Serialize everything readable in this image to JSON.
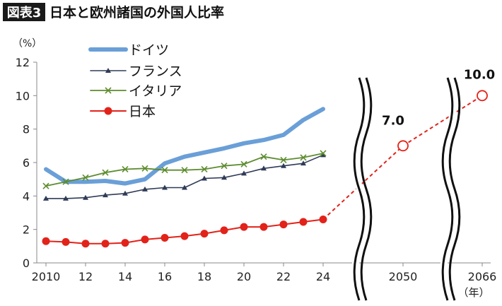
{
  "header": {
    "badge": "図表3",
    "title": "日本と欧州諸国の外国人比率"
  },
  "chart_data": {
    "type": "line",
    "unit_label": "（%）",
    "xlabel": "",
    "ylabel": "",
    "ylim": [
      0,
      12
    ],
    "yticks": [
      "0",
      "2",
      "4",
      "6",
      "8",
      "10",
      "12"
    ],
    "x": [
      2010,
      2011,
      2012,
      2013,
      2014,
      2015,
      2016,
      2017,
      2018,
      2019,
      2020,
      2021,
      2022,
      2023,
      2024
    ],
    "xticks": [
      {
        "year": 2010,
        "label": "2010"
      },
      {
        "year": 2012,
        "label": "12"
      },
      {
        "year": 2014,
        "label": "14"
      },
      {
        "year": 2016,
        "label": "16"
      },
      {
        "year": 2018,
        "label": "18"
      },
      {
        "year": 2020,
        "label": "20"
      },
      {
        "year": 2022,
        "label": "22"
      },
      {
        "year": 2024,
        "label": "24"
      }
    ],
    "grid": false,
    "legend_position": "top-left",
    "series": [
      {
        "name": "ドイツ",
        "color": "#6a9fd8",
        "marker": "none",
        "values": [
          5.6,
          4.85,
          4.85,
          4.9,
          4.75,
          5.0,
          5.95,
          6.35,
          6.6,
          6.85,
          7.15,
          7.35,
          7.65,
          8.55,
          9.2
        ]
      },
      {
        "name": "フランス",
        "color": "#2f3b57",
        "marker": "triangle",
        "values": [
          3.85,
          3.85,
          3.9,
          4.05,
          4.15,
          4.4,
          4.5,
          4.5,
          5.05,
          5.1,
          5.35,
          5.65,
          5.8,
          5.95,
          6.45
        ]
      },
      {
        "name": "イタリア",
        "color": "#5d8c2f",
        "marker": "x",
        "values": [
          4.6,
          4.85,
          5.1,
          5.4,
          5.6,
          5.65,
          5.55,
          5.55,
          5.6,
          5.8,
          5.9,
          6.35,
          6.15,
          6.3,
          6.55
        ]
      },
      {
        "name": "日本",
        "color": "#e2231a",
        "marker": "circle",
        "values": [
          1.3,
          1.25,
          1.15,
          1.15,
          1.2,
          1.4,
          1.5,
          1.6,
          1.75,
          1.95,
          2.15,
          2.15,
          2.3,
          2.45,
          2.6
        ]
      }
    ],
    "projections": [
      {
        "year": 2050,
        "label": "2050",
        "value": 7.0,
        "value_label": "7.0"
      },
      {
        "year": 2066,
        "label": "2066",
        "value": 10.0,
        "value_label": "10.0"
      }
    ],
    "year_unit": "（年）"
  }
}
